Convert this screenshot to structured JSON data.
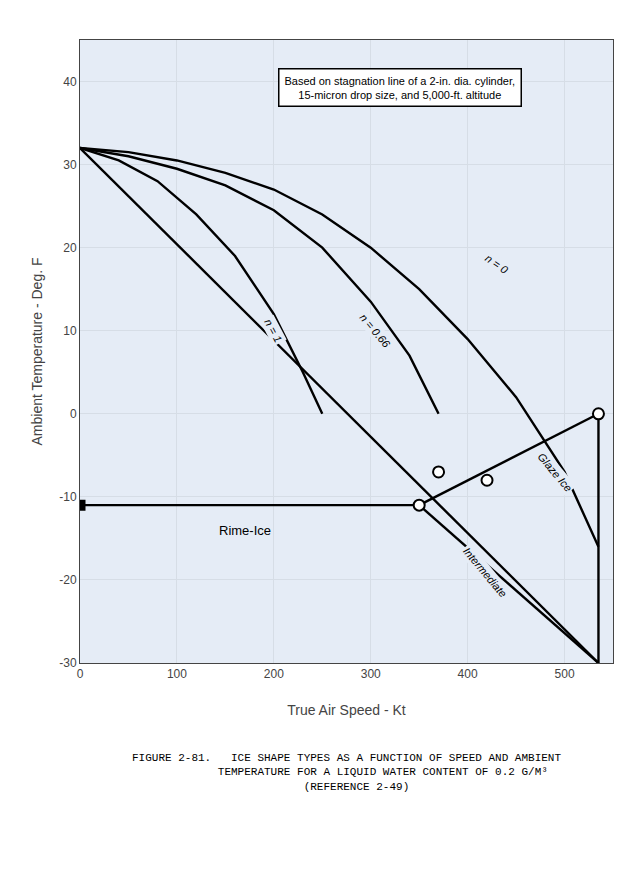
{
  "chart_data": {
    "type": "line",
    "xlabel": "True Air Speed - Kt",
    "ylabel": "Ambient Temperature - Deg. F",
    "xlim": [
      0,
      550
    ],
    "ylim": [
      -30,
      45
    ],
    "xticks": [
      0,
      100,
      200,
      300,
      400,
      500
    ],
    "yticks": [
      -30,
      -20,
      -10,
      0,
      10,
      20,
      30,
      40
    ],
    "grid": true,
    "series": [
      {
        "x": [
          0,
          535
        ],
        "values": [
          32,
          -30
        ],
        "color": "#000000"
      },
      {
        "x": [
          0,
          50,
          100,
          150,
          200,
          250,
          300,
          350,
          400,
          450,
          500,
          535
        ],
        "values": [
          32,
          31.5,
          30.5,
          29,
          27,
          24,
          20,
          15,
          9,
          2,
          -7,
          -16
        ],
        "color": "#000000"
      },
      {
        "x": [
          0,
          50,
          100,
          150,
          200,
          250,
          300,
          340,
          370
        ],
        "values": [
          32,
          31,
          29.5,
          27.5,
          24.5,
          20,
          13.5,
          7,
          0
        ],
        "color": "#000000"
      },
      {
        "x": [
          0,
          40,
          80,
          120,
          160,
          200,
          230,
          250
        ],
        "values": [
          32,
          30.5,
          28,
          24,
          19,
          12,
          5,
          0
        ],
        "color": "#000000"
      },
      {
        "x": [
          0,
          350
        ],
        "values": [
          -11,
          -11
        ],
        "color": "#000000"
      },
      {
        "x": [
          350,
          535
        ],
        "values": [
          -11,
          -30
        ],
        "color": "#000000"
      },
      {
        "x": [
          350,
          535
        ],
        "values": [
          -11,
          0
        ],
        "color": "#000000"
      },
      {
        "x": [
          535,
          535
        ],
        "values": [
          0,
          -30
        ],
        "color": "#000000"
      },
      {
        "type": "scatter",
        "marker": "circle",
        "x": [
          350,
          370,
          420,
          535
        ],
        "values": [
          -11,
          -7,
          -8,
          0
        ],
        "color": "#000000"
      },
      {
        "type": "scatter",
        "marker": "square",
        "x": [
          0
        ],
        "values": [
          -11
        ],
        "color": "#000000"
      }
    ],
    "annotations": [
      {
        "text": "n = 0",
        "x": 430,
        "y": 18
      },
      {
        "text": "n = 0.66",
        "x": 305,
        "y": 10
      },
      {
        "text": "n = 1",
        "x": 200,
        "y": 10
      },
      {
        "text": "Rime-Ice",
        "x": 170,
        "y": -14
      },
      {
        "text": "Intermediate",
        "x": 418,
        "y": -19
      },
      {
        "text": "Glaze Ice",
        "x": 490,
        "y": -7
      },
      {
        "text": "Based on stagnation line of a 2-in. dia. cylinder,\n15-micron drop size, and 5,000-ft. altitude"
      },
      {
        "text": "FIGURE 2-81.   ICE SHAPE TYPES AS A FUNCTION OF SPEED AND AMBIENT\n             TEMPERATURE FOR A LIQUID WATER CONTENT OF 0.2 G/M³\n                          (REFERENCE 2-49)"
      }
    ]
  }
}
